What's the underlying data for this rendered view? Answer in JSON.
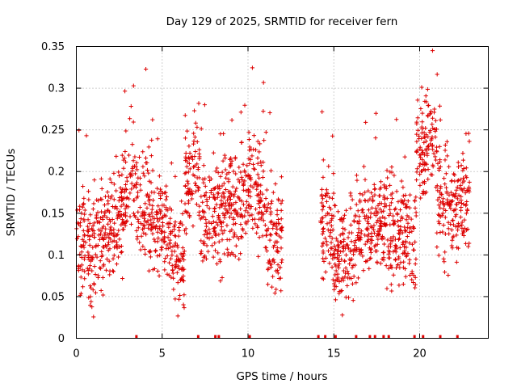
{
  "chart_data": {
    "type": "scatter",
    "title": "Day 129 of 2025, SRMTID for receiver fern",
    "xlabel": "GPS time / hours",
    "ylabel": "SRMTID / TECUs",
    "xlim": [
      0,
      24
    ],
    "ylim": [
      0,
      0.35
    ],
    "xticks": [
      0,
      5,
      10,
      15,
      20
    ],
    "xtick_labels": [
      "0",
      "5",
      "10",
      "15",
      "20"
    ],
    "yticks": [
      0,
      0.05,
      0.1,
      0.15,
      0.2,
      0.25,
      0.3,
      0.35
    ],
    "ytick_labels": [
      "0",
      "0.05",
      "0.1",
      "0.15",
      "0.2",
      "0.25",
      "0.3",
      "0.35"
    ],
    "grid": true,
    "marker": "+",
    "color": "#dd0000",
    "series": [
      {
        "name": "SRMTID",
        "segments": [
          {
            "t0": 0.0,
            "t1": 1.0,
            "base": [
              0.12,
              0.1
            ]
          },
          {
            "t0": 1.0,
            "t1": 2.5,
            "base": [
              0.11,
              0.14
            ]
          },
          {
            "t0": 2.5,
            "t1": 3.5,
            "base": [
              0.15,
              0.19
            ]
          },
          {
            "t0": 3.5,
            "t1": 4.5,
            "base": [
              0.17,
              0.14
            ]
          },
          {
            "t0": 4.5,
            "t1": 5.5,
            "base": [
              0.13,
              0.12
            ]
          },
          {
            "t0": 5.5,
            "t1": 6.3,
            "base": [
              0.1,
              0.09
            ]
          },
          {
            "t0": 6.3,
            "t1": 7.2,
            "base": [
              0.18,
              0.2
            ]
          },
          {
            "t0": 7.2,
            "t1": 8.5,
            "base": [
              0.14,
              0.15
            ]
          },
          {
            "t0": 8.5,
            "t1": 10.0,
            "base": [
              0.16,
              0.17
            ]
          },
          {
            "t0": 10.0,
            "t1": 11.0,
            "base": [
              0.18,
              0.17
            ]
          },
          {
            "t0": 11.0,
            "t1": 12.0,
            "base": [
              0.14,
              0.11
            ]
          },
          {
            "t0": 14.2,
            "t1": 15.0,
            "base": [
              0.15,
              0.12
            ]
          },
          {
            "t0": 15.0,
            "t1": 16.5,
            "base": [
              0.1,
              0.11
            ]
          },
          {
            "t0": 16.5,
            "t1": 18.0,
            "base": [
              0.13,
              0.14
            ]
          },
          {
            "t0": 18.0,
            "t1": 19.0,
            "base": [
              0.13,
              0.12
            ]
          },
          {
            "t0": 19.0,
            "t1": 19.8,
            "base": [
              0.11,
              0.12
            ]
          },
          {
            "t0": 19.8,
            "t1": 21.0,
            "base": [
              0.22,
              0.24
            ]
          },
          {
            "t0": 21.0,
            "t1": 22.0,
            "base": [
              0.17,
              0.15
            ]
          },
          {
            "t0": 22.0,
            "t1": 22.9,
            "base": [
              0.15,
              0.17
            ]
          }
        ],
        "spread": 0.045
      }
    ],
    "rug_x_hours": [
      3.5,
      7.1,
      8.1,
      8.3,
      10.1,
      14.1,
      14.5,
      15.1,
      16.3,
      17.1,
      17.4,
      17.9,
      18.2,
      19.7,
      20.2,
      21.2,
      22.2
    ]
  }
}
